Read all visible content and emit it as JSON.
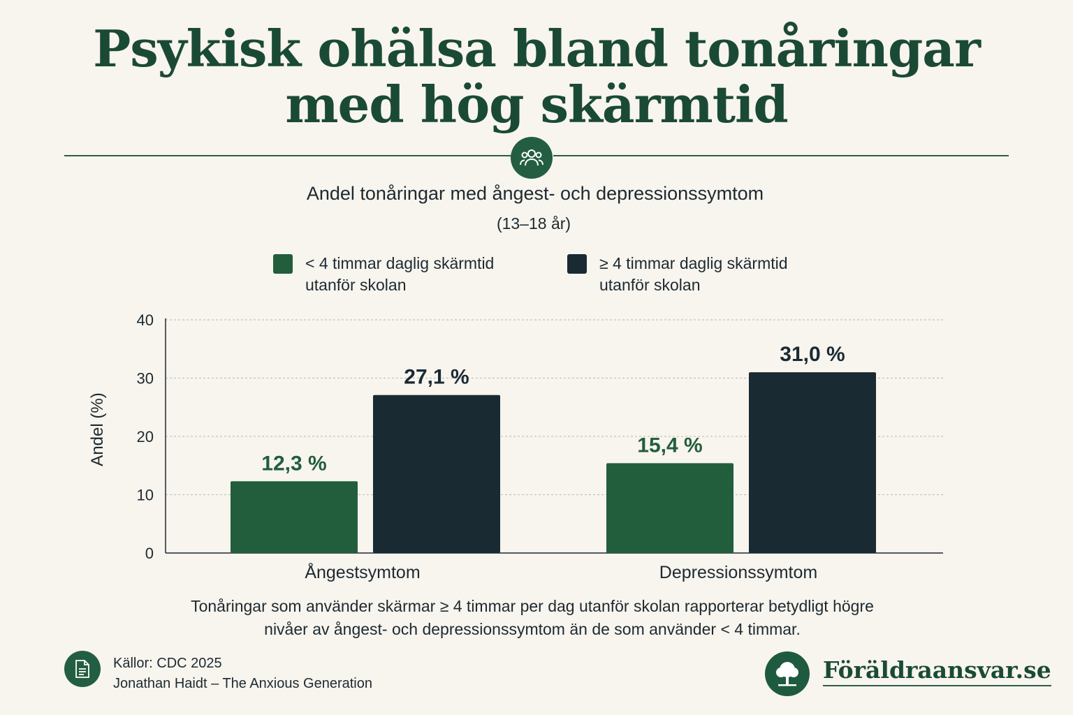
{
  "header": {
    "title_line1": "Psykisk ohälsa bland tonåringar",
    "title_line2": "med hög skärmtid",
    "badge_icon": "people-icon"
  },
  "chart_data": {
    "type": "bar",
    "title": "Andel tonåringar med ångest- och depressionssymtom",
    "subtitle": "(13–18 år)",
    "categories": [
      "Ångestsymtom",
      "Depressionssymtom"
    ],
    "series": [
      {
        "name": "< 4 timmar daglig skärmtid utanför skolan",
        "values": [
          12.3,
          15.4
        ],
        "labels": [
          "12,3 %",
          "15,4 %"
        ],
        "color": "#225e3c"
      },
      {
        "name": "≥ 4 timmar daglig skärmtid utanför skolan",
        "values": [
          27.1,
          31.0
        ],
        "labels": [
          "27,1 %",
          "31,0 %"
        ],
        "color": "#1a2a33"
      }
    ],
    "ylabel": "Andel (%)",
    "ylim": [
      0,
      40
    ],
    "yticks": [
      0,
      10,
      20,
      30,
      40
    ],
    "grid": true,
    "legend_position": "top"
  },
  "legend": {
    "item1": {
      "line1": "< 4 timmar daglig skärmtid",
      "line2": "utanför skolan"
    },
    "item2": {
      "line1": "≥ 4 timmar daglig skärmtid",
      "line2": "utanför skolan"
    }
  },
  "caption": {
    "line1": "Tonåringar som använder skärmar ≥ 4 timmar per dag utanför skolan rapporterar betydligt högre",
    "line2": "nivåer av ångest- och depressionssymtom än de som använder < 4 timmar."
  },
  "footer": {
    "sources_line1": "Källor: CDC 2025",
    "sources_line2": "Jonathan Haidt – The Anxious Generation",
    "source_icon": "document-icon",
    "brand": "Föräldraansvar.se",
    "brand_icon": "tree-icon"
  },
  "colors": {
    "accent": "#235e42",
    "dark": "#1a2a33",
    "background": "#f8f4ee"
  }
}
